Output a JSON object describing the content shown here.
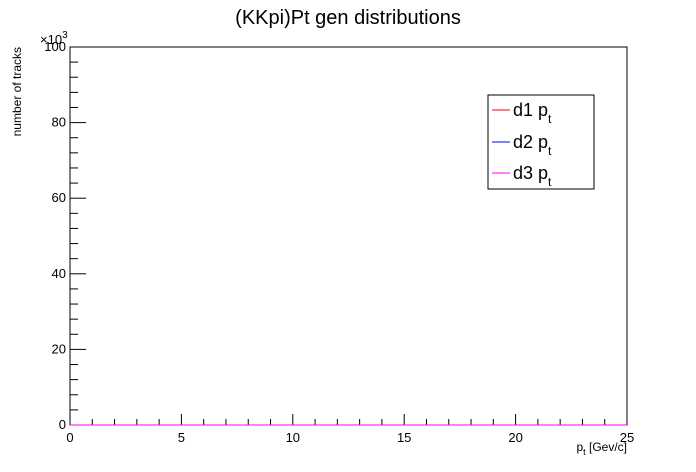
{
  "chart_data": {
    "type": "line",
    "title": "(KKpi)Pt gen distributions",
    "xlabel": "p_t [Gev/c]",
    "xlabel_main": "p",
    "xlabel_sub": "t",
    "xlabel_unit": " [Gev/c]",
    "ylabel": "number of tracks",
    "y_multiplier": {
      "base": "×10",
      "exp": "3"
    },
    "xlim": [
      0,
      25
    ],
    "ylim": [
      0,
      100
    ],
    "x_ticks": [
      "0",
      "5",
      "10",
      "15",
      "20",
      "25"
    ],
    "y_ticks": [
      "0",
      "20",
      "40",
      "60",
      "80",
      "100"
    ],
    "bin_width": 0.25,
    "legend_position": "top-right",
    "series": [
      {
        "name": "d1 p_t",
        "label_main": "d1 p",
        "label_sub": "t",
        "color": "#ff0000",
        "x": [
          0.125,
          0.375,
          0.625,
          0.875,
          1.125,
          1.375,
          1.625,
          1.875,
          2.125,
          2.375,
          2.625,
          2.875,
          3.125,
          3.375,
          3.625,
          3.875,
          4.125,
          4.375,
          4.625,
          4.875,
          5.125,
          5.375,
          5.625,
          5.875,
          6.125,
          6.375,
          6.625,
          6.875,
          7.125,
          7.375,
          7.625,
          7.875,
          8.125,
          8.375,
          8.625,
          8.875,
          9.125,
          9.375,
          9.625,
          9.875,
          10.125,
          10.375,
          10.625,
          10.875,
          11.125,
          11.375,
          11.625,
          11.875,
          12.125,
          12.375,
          12.625,
          12.875,
          13.125,
          13.375,
          13.625,
          13.875,
          14.125,
          14.375,
          14.625,
          14.875,
          15.125,
          15.375,
          15.625,
          15.875,
          16.125,
          16.375,
          16.625,
          16.875,
          17.125,
          17.375,
          17.625,
          17.875,
          18.125,
          18.375,
          18.625,
          18.875,
          19.125,
          19.375,
          19.625,
          19.875,
          20.125,
          20.375,
          20.625,
          20.875,
          21.125,
          21.375,
          21.625,
          21.875,
          22.125,
          22.375,
          22.625,
          22.875,
          23.125,
          23.375,
          23.625,
          23.875,
          24.125,
          24.375,
          24.625,
          24.875
        ],
        "y": [
          0,
          0,
          0,
          0,
          0,
          0,
          0,
          0,
          0,
          0,
          0,
          0,
          0,
          0,
          0,
          0,
          0,
          0,
          0,
          0,
          0,
          0,
          0,
          0,
          0,
          0,
          0,
          0,
          0,
          0,
          0,
          0,
          0,
          0,
          0,
          0,
          0,
          0,
          0,
          0,
          0,
          0,
          0,
          0,
          0,
          0,
          0,
          0,
          0,
          0,
          0,
          0,
          0,
          0,
          0,
          0,
          0,
          0,
          0,
          0,
          0,
          0,
          0,
          0,
          0,
          0,
          0,
          0,
          0,
          0,
          0,
          0,
          0,
          0,
          0,
          0,
          0,
          0,
          0,
          0,
          0,
          0,
          0,
          0,
          0,
          0,
          0,
          0,
          0,
          0,
          0,
          0,
          0,
          0,
          0,
          0,
          0,
          0,
          0,
          0
        ]
      },
      {
        "name": "d2 p_t",
        "label_main": "d2 p",
        "label_sub": "t",
        "color": "#0000ff",
        "x": [
          0.125,
          0.375,
          0.625,
          0.875,
          1.125,
          1.375,
          1.625,
          1.875,
          2.125,
          2.375,
          2.625,
          2.875,
          3.125,
          3.375,
          3.625,
          3.875,
          4.125,
          4.375,
          4.625,
          4.875,
          5.125,
          5.375,
          5.625,
          5.875,
          6.125,
          6.375,
          6.625,
          6.875,
          7.125,
          7.375,
          7.625,
          7.875,
          8.125,
          8.375,
          8.625,
          8.875,
          9.125,
          9.375,
          9.625,
          9.875,
          10.125,
          10.375,
          10.625,
          10.875,
          11.125,
          11.375,
          11.625,
          11.875,
          12.125,
          12.375,
          12.625,
          12.875,
          13.125,
          13.375,
          13.625,
          13.875,
          14.125,
          14.375,
          14.625,
          14.875,
          15.125,
          15.375,
          15.625,
          15.875,
          16.125,
          16.375,
          16.625,
          16.875,
          17.125,
          17.375,
          17.625,
          17.875,
          18.125,
          18.375,
          18.625,
          18.875,
          19.125,
          19.375,
          19.625,
          19.875,
          20.125,
          20.375,
          20.625,
          20.875,
          21.125,
          21.375,
          21.625,
          21.875,
          22.125,
          22.375,
          22.625,
          22.875,
          23.125,
          23.375,
          23.625,
          23.875,
          24.125,
          24.375,
          24.625,
          24.875
        ],
        "y": [
          0,
          0,
          0,
          0,
          0,
          0,
          0,
          0,
          0,
          0,
          0,
          0,
          0,
          0,
          0,
          0,
          0,
          0,
          0,
          0,
          0,
          0,
          0,
          0,
          0,
          0,
          0,
          0,
          0,
          0,
          0,
          0,
          0,
          0,
          0,
          0,
          0,
          0,
          0,
          0,
          0,
          0,
          0,
          0,
          0,
          0,
          0,
          0,
          0,
          0,
          0,
          0,
          0,
          0,
          0,
          0,
          0,
          0,
          0,
          0,
          0,
          0,
          0,
          0,
          0,
          0,
          0,
          0,
          0,
          0,
          0,
          0,
          0,
          0,
          0,
          0,
          0,
          0,
          0,
          0,
          0,
          0,
          0,
          0,
          0,
          0,
          0,
          0,
          0,
          0,
          0,
          0,
          0,
          0,
          0,
          0,
          0,
          0,
          0,
          0
        ]
      },
      {
        "name": "d3 p_t",
        "label_main": "d3 p",
        "label_sub": "t",
        "color": "#ff00ff",
        "x": [
          0.125,
          0.375,
          0.625,
          0.875,
          1.125,
          1.375,
          1.625,
          1.875,
          2.125,
          2.375,
          2.625,
          2.875,
          3.125,
          3.375,
          3.625,
          3.875,
          4.125,
          4.375,
          4.625,
          4.875,
          5.125,
          5.375,
          5.625,
          5.875,
          6.125,
          6.375,
          6.625,
          6.875,
          7.125,
          7.375,
          7.625,
          7.875,
          8.125,
          8.375,
          8.625,
          8.875,
          9.125,
          9.375,
          9.625,
          9.875,
          10.125,
          10.375,
          10.625,
          10.875,
          11.125,
          11.375,
          11.625,
          11.875,
          12.125,
          12.375,
          12.625,
          12.875,
          13.125,
          13.375,
          13.625,
          13.875,
          14.125,
          14.375,
          14.625,
          14.875,
          15.125,
          15.375,
          15.625,
          15.875,
          16.125,
          16.375,
          16.625,
          16.875,
          17.125,
          17.375,
          17.625,
          17.875,
          18.125,
          18.375,
          18.625,
          18.875,
          19.125,
          19.375,
          19.625,
          19.875,
          20.125,
          20.375,
          20.625,
          20.875,
          21.125,
          21.375,
          21.625,
          21.875,
          22.125,
          22.375,
          22.625,
          22.875,
          23.125,
          23.375,
          23.625,
          23.875,
          24.125,
          24.375,
          24.625,
          24.875
        ],
        "y": [
          0,
          0,
          0,
          0,
          0,
          0,
          0,
          0,
          0,
          0,
          0,
          0,
          0,
          0,
          0,
          0,
          0,
          0,
          0,
          0,
          0,
          0,
          0,
          0,
          0,
          0,
          0,
          0,
          0,
          0,
          0,
          0,
          0,
          0,
          0,
          0,
          0,
          0,
          0,
          0,
          0,
          0,
          0,
          0,
          0,
          0,
          0,
          0,
          0,
          0,
          0,
          0,
          0,
          0,
          0,
          0,
          0,
          0,
          0,
          0,
          0,
          0,
          0,
          0,
          0,
          0,
          0,
          0,
          0,
          0,
          0,
          0,
          0,
          0,
          0,
          0,
          0,
          0,
          0,
          0,
          0,
          0,
          0,
          0,
          0,
          0,
          0,
          0,
          0,
          0,
          0,
          0,
          0,
          0,
          0,
          0,
          0,
          0,
          0,
          0
        ]
      }
    ]
  }
}
